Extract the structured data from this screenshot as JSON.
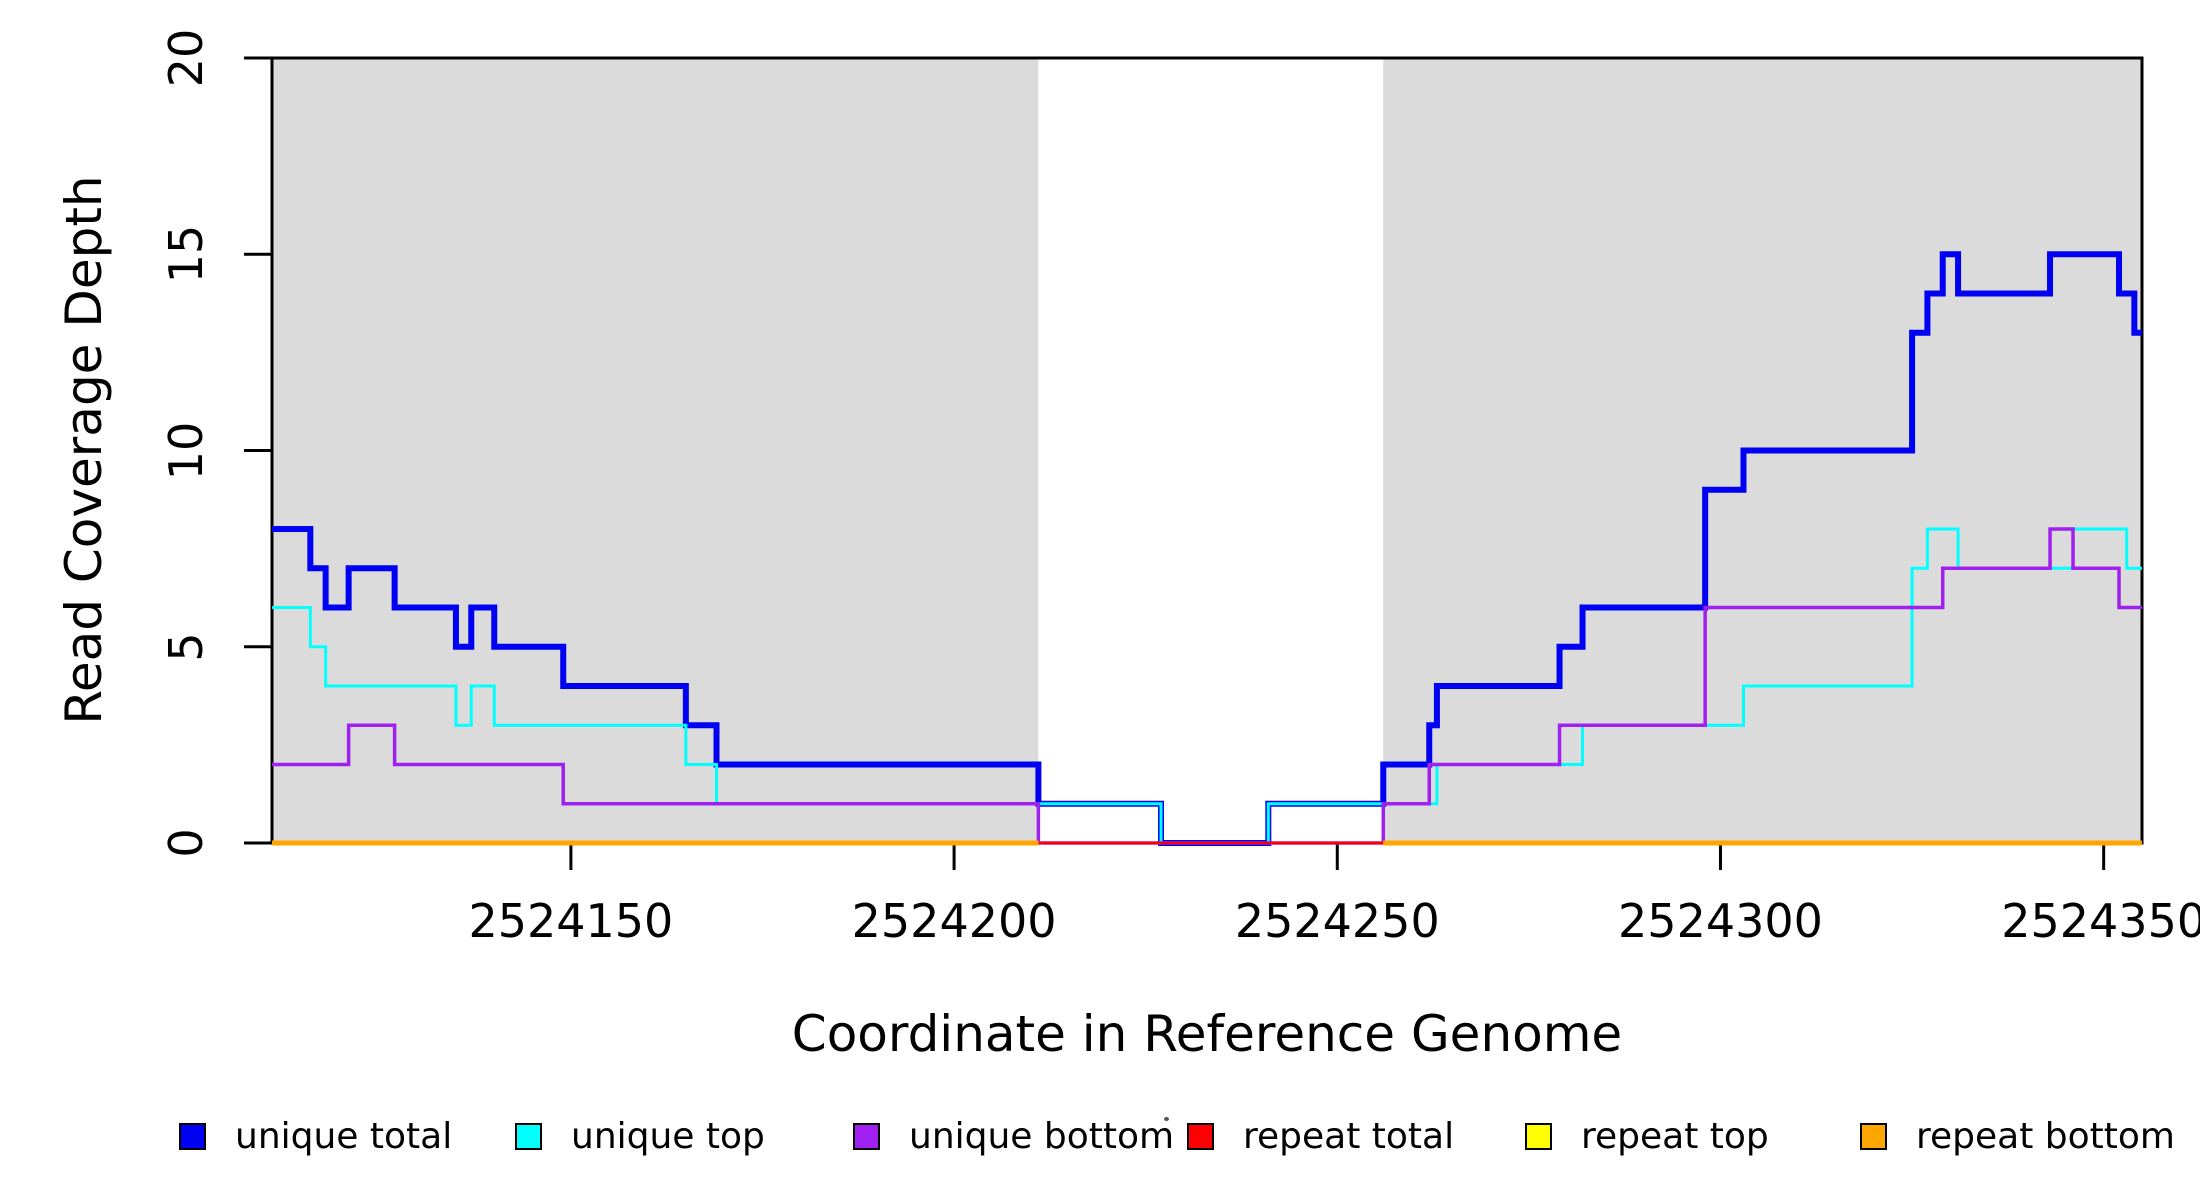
{
  "chart_data": {
    "type": "line",
    "subtype": "step-coverage",
    "title": "",
    "xlabel": "Coordinate in Reference Genome",
    "ylabel": "Read Coverage Depth",
    "grid": false,
    "legend_position": "bottom",
    "background_color": "#FFFFFF",
    "region_shade_color": "#DBDBDB",
    "x_axis": {
      "min": 2524111,
      "max": 2524355,
      "ticks": [
        {
          "value": 2524150,
          "label": "2524150"
        },
        {
          "value": 2524200,
          "label": "2524200"
        },
        {
          "value": 2524250,
          "label": "2524250"
        },
        {
          "value": 2524300,
          "label": "2524300"
        },
        {
          "value": 2524350,
          "label": "2524350"
        }
      ]
    },
    "y_axis": {
      "min": 0,
      "max": 20,
      "ticks": [
        {
          "value": 0,
          "label": "0"
        },
        {
          "value": 5,
          "label": "5"
        },
        {
          "value": 10,
          "label": "10"
        },
        {
          "value": 15,
          "label": "15"
        },
        {
          "value": 20,
          "label": "20"
        }
      ]
    },
    "shaded_regions": [
      {
        "x0": 2524111,
        "x1": 2524211,
        "color": "#DBDBDB"
      },
      {
        "x0": 2524256,
        "x1": 2524355,
        "color": "#DBDBDB"
      }
    ],
    "series": [
      {
        "name": "unique total",
        "color": "#0000F2",
        "width": 6,
        "segments": [
          {
            "steps": [
              [
                2524111,
                8
              ],
              [
                2524116,
                7
              ],
              [
                2524118,
                6
              ],
              [
                2524121,
                7
              ],
              [
                2524127,
                6
              ],
              [
                2524135,
                5
              ],
              [
                2524137,
                6
              ],
              [
                2524140,
                5
              ],
              [
                2524149,
                4
              ],
              [
                2524165,
                3
              ],
              [
                2524169,
                2
              ],
              [
                2524211,
                1
              ],
              [
                2524227,
                0
              ],
              [
                2524241,
                1
              ],
              [
                2524256,
                2
              ],
              [
                2524262,
                3
              ],
              [
                2524263,
                4
              ],
              [
                2524279,
                5
              ],
              [
                2524282,
                6
              ],
              [
                2524298,
                9
              ],
              [
                2524303,
                10
              ],
              [
                2524325,
                13
              ],
              [
                2524327,
                14
              ],
              [
                2524329,
                15
              ],
              [
                2524331,
                14
              ],
              [
                2524343,
                15
              ],
              [
                2524352,
                14
              ],
              [
                2524354,
                13
              ]
            ],
            "end": 2524355
          }
        ]
      },
      {
        "name": "unique top",
        "color": "#00FFFF",
        "width": 3,
        "segments": [
          {
            "steps": [
              [
                2524111,
                6
              ],
              [
                2524116,
                5
              ],
              [
                2524118,
                4
              ],
              [
                2524135,
                3
              ],
              [
                2524137,
                4
              ],
              [
                2524140,
                3
              ],
              [
                2524165,
                2
              ],
              [
                2524169,
                1
              ],
              [
                2524227,
                0
              ],
              [
                2524241,
                1
              ],
              [
                2524263,
                2
              ],
              [
                2524282,
                3
              ],
              [
                2524303,
                4
              ],
              [
                2524325,
                7
              ],
              [
                2524327,
                8
              ],
              [
                2524331,
                7
              ],
              [
                2524346,
                8
              ],
              [
                2524353,
                7
              ]
            ],
            "end": 2524355
          }
        ]
      },
      {
        "name": "unique bottom",
        "color": "#A020F0",
        "width": 3.5,
        "segments": [
          {
            "steps": [
              [
                2524111,
                2
              ],
              [
                2524121,
                3
              ],
              [
                2524127,
                2
              ],
              [
                2524149,
                1
              ],
              [
                2524211,
                0
              ],
              [
                2524256,
                1
              ],
              [
                2524262,
                2
              ],
              [
                2524279,
                3
              ],
              [
                2524298,
                6
              ],
              [
                2524329,
                7
              ],
              [
                2524343,
                8
              ],
              [
                2524346,
                7
              ],
              [
                2524352,
                6
              ]
            ],
            "end": 2524355
          }
        ]
      },
      {
        "name": "repeat total",
        "color": "#FF0000",
        "width": 2.5,
        "segments": [
          {
            "steps": [
              [
                2524111,
                0
              ]
            ],
            "end": 2524355
          }
        ]
      },
      {
        "name": "repeat top",
        "color": "#FFFF00",
        "width": 3,
        "segments": [
          {
            "steps": [
              [
                2524111,
                0
              ]
            ],
            "end": 2524211
          },
          {
            "steps": [
              [
                2524256,
                0
              ]
            ],
            "end": 2524355
          }
        ]
      },
      {
        "name": "repeat bottom",
        "color": "#FFA500",
        "width": 5,
        "segments": [
          {
            "steps": [
              [
                2524111,
                0
              ]
            ],
            "end": 2524211
          },
          {
            "steps": [
              [
                2524256,
                0
              ]
            ],
            "end": 2524355
          }
        ]
      }
    ]
  },
  "legend": {
    "items": [
      {
        "label": "unique total",
        "color": "#0000F2"
      },
      {
        "label": "unique top",
        "color": "#00FFFF"
      },
      {
        "label": "unique bottom",
        "color": "#A020F0"
      },
      {
        "label": "repeat total",
        "color": "#FF0000"
      },
      {
        "label": "repeat top",
        "color": "#FFFF00"
      },
      {
        "label": "repeat bottom",
        "color": "#FFA500"
      }
    ]
  }
}
